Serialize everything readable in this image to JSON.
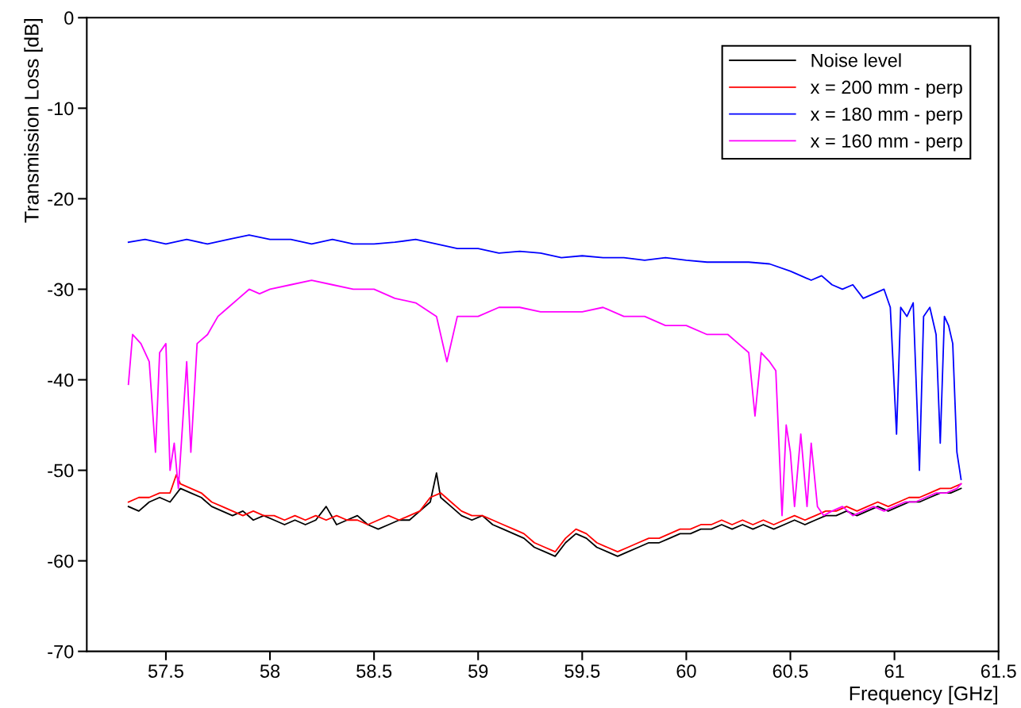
{
  "chart_data": {
    "type": "line",
    "xlabel": "Frequency [GHz]",
    "ylabel": "Transmission Loss [dB]",
    "xlim": [
      57.12,
      61.5
    ],
    "xticks": [
      57.5,
      58,
      58.5,
      59,
      59.5,
      60,
      60.5,
      61,
      61.5
    ],
    "ylim": [
      -70,
      0
    ],
    "yticks": [
      -70,
      -60,
      -50,
      -40,
      -30,
      -20,
      -10,
      0
    ],
    "grid": false,
    "legend": "top right",
    "line_style": "solid",
    "series": [
      {
        "name": "Noise level",
        "color": "#000000",
        "x": [
          57.32,
          57.37,
          57.42,
          57.47,
          57.52,
          57.57,
          57.62,
          57.67,
          57.72,
          57.77,
          57.82,
          57.87,
          57.92,
          57.97,
          58.02,
          58.07,
          58.12,
          58.17,
          58.22,
          58.27,
          58.32,
          58.37,
          58.42,
          58.47,
          58.52,
          58.57,
          58.62,
          58.67,
          58.72,
          58.77,
          58.8,
          58.82,
          58.87,
          58.92,
          58.97,
          59.02,
          59.07,
          59.12,
          59.17,
          59.22,
          59.27,
          59.32,
          59.37,
          59.42,
          59.47,
          59.52,
          59.57,
          59.62,
          59.67,
          59.72,
          59.77,
          59.82,
          59.87,
          59.92,
          59.97,
          60.02,
          60.07,
          60.12,
          60.17,
          60.22,
          60.27,
          60.32,
          60.37,
          60.42,
          60.47,
          60.52,
          60.57,
          60.62,
          60.67,
          60.72,
          60.77,
          60.82,
          60.87,
          60.92,
          60.97,
          61.02,
          61.07,
          61.12,
          61.17,
          61.22,
          61.27,
          61.32
        ],
        "values": [
          -54,
          -54.5,
          -53.5,
          -53,
          -53.5,
          -52,
          -52.5,
          -53,
          -54,
          -54.5,
          -55,
          -54.5,
          -55.5,
          -55,
          -55.5,
          -56,
          -55.5,
          -56,
          -55.5,
          -54,
          -56,
          -55.5,
          -55,
          -56,
          -56.5,
          -56,
          -55.5,
          -55.5,
          -54.5,
          -53.5,
          -50.3,
          -53,
          -54,
          -55,
          -55.5,
          -55,
          -56,
          -56.5,
          -57,
          -57.5,
          -58.5,
          -59,
          -59.5,
          -58,
          -57,
          -57.5,
          -58.5,
          -59,
          -59.5,
          -59,
          -58.5,
          -58,
          -58,
          -57.5,
          -57,
          -57,
          -56.5,
          -56.5,
          -56,
          -56.5,
          -56,
          -56.5,
          -56,
          -56.5,
          -56,
          -55.5,
          -56,
          -55.5,
          -55,
          -55,
          -54.5,
          -55,
          -54.5,
          -54,
          -54.5,
          -54,
          -53.5,
          -53.5,
          -53,
          -52.5,
          -52.5,
          -52
        ]
      },
      {
        "name": "x = 200 mm - perp",
        "color": "#ff0000",
        "x": [
          57.32,
          57.37,
          57.42,
          57.47,
          57.52,
          57.55,
          57.57,
          57.62,
          57.67,
          57.72,
          57.77,
          57.82,
          57.87,
          57.92,
          57.97,
          58.02,
          58.07,
          58.12,
          58.17,
          58.22,
          58.27,
          58.32,
          58.37,
          58.42,
          58.47,
          58.52,
          58.57,
          58.62,
          58.67,
          58.72,
          58.77,
          58.82,
          58.87,
          58.92,
          58.97,
          59.02,
          59.07,
          59.12,
          59.17,
          59.22,
          59.27,
          59.32,
          59.37,
          59.42,
          59.47,
          59.52,
          59.57,
          59.62,
          59.67,
          59.72,
          59.77,
          59.82,
          59.87,
          59.92,
          59.97,
          60.02,
          60.07,
          60.12,
          60.17,
          60.22,
          60.27,
          60.32,
          60.37,
          60.42,
          60.47,
          60.52,
          60.57,
          60.62,
          60.67,
          60.72,
          60.77,
          60.82,
          60.87,
          60.92,
          60.97,
          61.02,
          61.07,
          61.12,
          61.17,
          61.22,
          61.27,
          61.32
        ],
        "values": [
          -53.5,
          -53,
          -53,
          -52.5,
          -52.5,
          -50.5,
          -51.5,
          -52,
          -52.5,
          -53.5,
          -54,
          -54.5,
          -55,
          -54.5,
          -55,
          -55,
          -55.5,
          -55,
          -55.5,
          -55,
          -55.5,
          -55,
          -55.5,
          -55.5,
          -56,
          -55.5,
          -55,
          -55.5,
          -55,
          -54.5,
          -53,
          -52.5,
          -53.5,
          -54.5,
          -55,
          -55,
          -55.5,
          -56,
          -56.5,
          -57,
          -58,
          -58.5,
          -59,
          -57.5,
          -56.5,
          -57,
          -58,
          -58.5,
          -59,
          -58.5,
          -58,
          -57.5,
          -57.5,
          -57,
          -56.5,
          -56.5,
          -56,
          -56,
          -55.5,
          -56,
          -55.5,
          -56,
          -55.5,
          -56,
          -55.5,
          -55,
          -55.5,
          -55,
          -54.5,
          -54.5,
          -54,
          -54.5,
          -54,
          -53.5,
          -54,
          -53.5,
          -53,
          -53,
          -52.5,
          -52,
          -52,
          -51.5
        ]
      },
      {
        "name": "x = 180 mm - perp",
        "color": "#0000ff",
        "x": [
          57.32,
          57.4,
          57.5,
          57.6,
          57.7,
          57.8,
          57.9,
          58.0,
          58.1,
          58.2,
          58.3,
          58.4,
          58.5,
          58.6,
          58.7,
          58.8,
          58.9,
          59.0,
          59.1,
          59.2,
          59.3,
          59.4,
          59.5,
          59.6,
          59.7,
          59.8,
          59.9,
          60.0,
          60.1,
          60.2,
          60.3,
          60.4,
          60.5,
          60.55,
          60.6,
          60.65,
          60.7,
          60.75,
          60.8,
          60.85,
          60.9,
          60.95,
          60.98,
          61.01,
          61.03,
          61.06,
          61.09,
          61.12,
          61.14,
          61.17,
          61.2,
          61.22,
          61.24,
          61.26,
          61.28,
          61.3,
          61.32
        ],
        "values": [
          -24.8,
          -24.5,
          -25,
          -24.5,
          -25,
          -24.5,
          -24,
          -24.5,
          -24.5,
          -25,
          -24.5,
          -25,
          -25,
          -24.8,
          -24.5,
          -25,
          -25.5,
          -25.5,
          -26,
          -25.8,
          -26,
          -26.5,
          -26.3,
          -26.5,
          -26.5,
          -26.8,
          -26.5,
          -26.8,
          -27,
          -27,
          -27,
          -27.2,
          -28,
          -28.5,
          -29,
          -28.5,
          -29.5,
          -30,
          -29.5,
          -31,
          -30.5,
          -30,
          -32,
          -46,
          -32,
          -33,
          -31.5,
          -50,
          -33,
          -32,
          -35,
          -47,
          -33,
          -34,
          -36,
          -48,
          -51
        ]
      },
      {
        "name": "x = 160 mm - perp",
        "color": "#ff00ff",
        "x": [
          57.32,
          57.34,
          57.38,
          57.42,
          57.45,
          57.47,
          57.5,
          57.52,
          57.54,
          57.56,
          57.58,
          57.6,
          57.62,
          57.65,
          57.7,
          57.75,
          57.8,
          57.85,
          57.9,
          57.95,
          58.0,
          58.1,
          58.2,
          58.3,
          58.4,
          58.5,
          58.6,
          58.7,
          58.8,
          58.85,
          58.9,
          59.0,
          59.1,
          59.2,
          59.3,
          59.4,
          59.5,
          59.6,
          59.7,
          59.8,
          59.9,
          60.0,
          60.1,
          60.2,
          60.25,
          60.3,
          60.33,
          60.36,
          60.4,
          60.43,
          60.46,
          60.48,
          60.5,
          60.52,
          60.55,
          60.58,
          60.6,
          60.63,
          60.66,
          60.7,
          60.75,
          60.8,
          60.85,
          60.9,
          60.95,
          61.0,
          61.05,
          61.1,
          61.15,
          61.2,
          61.25,
          61.3,
          61.32
        ],
        "values": [
          -40.5,
          -35,
          -36,
          -38,
          -48,
          -37,
          -36,
          -50,
          -47,
          -52,
          -45,
          -38,
          -48,
          -36,
          -35,
          -33,
          -32,
          -31,
          -30,
          -30.5,
          -30,
          -29.5,
          -29,
          -29.5,
          -30,
          -30,
          -31,
          -31.5,
          -33,
          -38,
          -33,
          -33,
          -32,
          -32,
          -32.5,
          -32.5,
          -32.5,
          -32,
          -33,
          -33,
          -34,
          -34,
          -35,
          -35,
          -36,
          -37,
          -44,
          -37,
          -38,
          -39,
          -55,
          -45,
          -48,
          -54,
          -46,
          -54,
          -47,
          -54,
          -55,
          -54.5,
          -54,
          -55,
          -54.5,
          -54,
          -54.5,
          -54,
          -53.5,
          -53.5,
          -53,
          -52.5,
          -52.5,
          -52,
          -51.5
        ]
      }
    ]
  }
}
